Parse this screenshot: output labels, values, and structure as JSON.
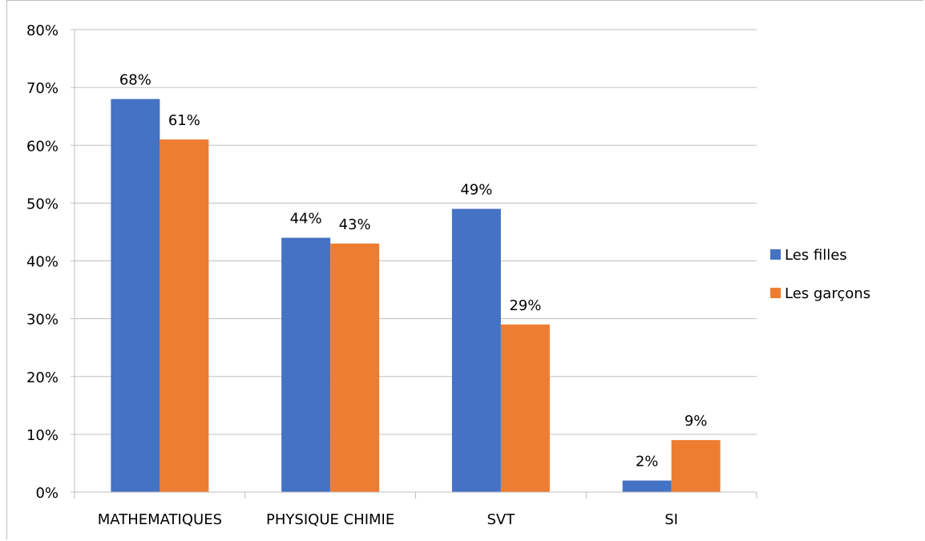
{
  "chart_data": {
    "type": "bar",
    "categories": [
      "MATHEMATIQUES",
      "PHYSIQUE CHIMIE",
      "SVT",
      "SI"
    ],
    "series": [
      {
        "name": "Les filles",
        "values": [
          68,
          44,
          49,
          2
        ],
        "color": "#4472C4"
      },
      {
        "name": "Les garçons",
        "values": [
          61,
          43,
          29,
          9
        ],
        "color": "#ED7D31"
      }
    ],
    "ylim": [
      0,
      80
    ],
    "yticks": [
      "0%",
      "10%",
      "20%",
      "30%",
      "40%",
      "50%",
      "60%",
      "70%",
      "80%"
    ],
    "value_suffix": "%",
    "grid": true,
    "legend_position": "right",
    "title": "",
    "xlabel": "",
    "ylabel": ""
  }
}
